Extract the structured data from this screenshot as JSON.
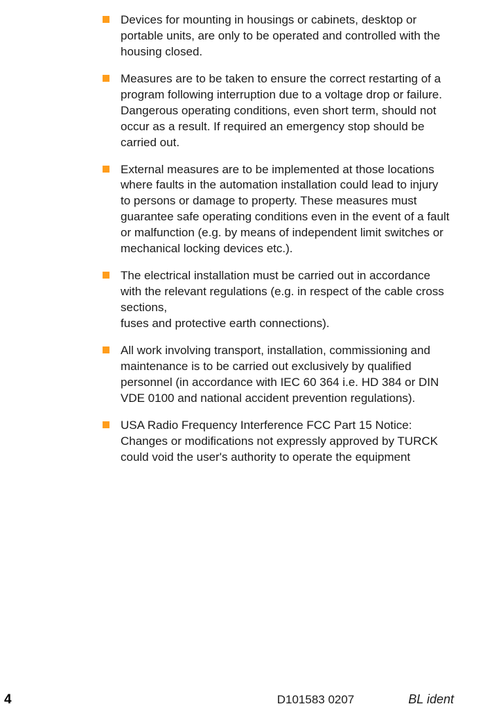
{
  "bullets": [
    {
      "text": "Devices for mounting in housings or cabinets, desktop or portable units, are only to be operated and controlled with the housing closed."
    },
    {
      "text": "Measures are to be taken to ensure the correct restarting of a program following interruption due to a voltage drop or failure. Dangerous operating conditions, even short term, should not occur as a result. If required an emergency stop should be carried out."
    },
    {
      "text": "External measures are to be implemented at those locations where faults in the automation installation could lead to injury to persons or damage to property. These measures must guarantee safe operating conditions even in the event of a fault or malfunction (e.g. by means of independent limit switches or mechanical locking devices etc.)."
    },
    {
      "text": "The electrical installation must be carried out in accordance with the relevant regulations (e.g. in respect of the cable cross sections,\nfuses and protective earth connections)."
    },
    {
      "text": "All work involving transport, installation, commissioning and maintenance is to be carried out exclusively by qualified personnel (in accordance with IEC 60 364 i.e. HD 384 or DIN VDE 0100 and national accident prevention regulations)."
    },
    {
      "text": "USA Radio Frequency Interference FCC Part 15 Notice: Changes or modifications not expressly approved by TURCK could void the user's authority to operate the equipment"
    }
  ],
  "footer": {
    "page_number": "4",
    "doc_code": "D101583 0207",
    "doc_name": "BL ident"
  },
  "styles": {
    "bullet_color": "#ff9d1b",
    "text_color": "#1a1a1a",
    "background_color": "#ffffff",
    "body_font_size": 17,
    "page_number_font_size": 19
  }
}
